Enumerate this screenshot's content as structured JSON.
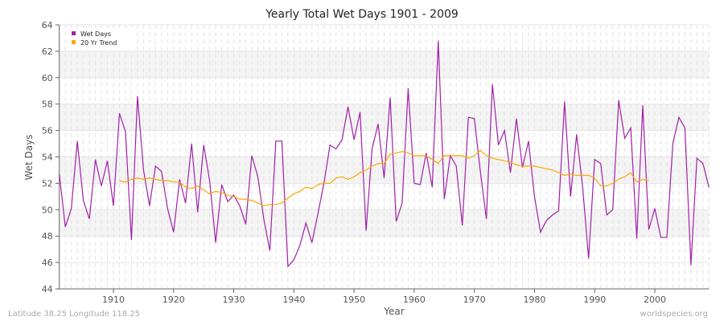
{
  "chart_data": {
    "type": "line",
    "title": "Yearly Total Wet Days 1901 - 2009",
    "xlabel": "Year",
    "ylabel": "Wet Days",
    "xlim": [
      1901,
      2009
    ],
    "ylim": [
      44,
      64
    ],
    "xticks": [
      1910,
      1920,
      1930,
      1940,
      1950,
      1960,
      1970,
      1980,
      1990,
      2000
    ],
    "yticks": [
      44,
      46,
      48,
      50,
      52,
      54,
      56,
      58,
      60,
      62,
      64
    ],
    "grid": true,
    "legend_placement": "top-left",
    "series": [
      {
        "name": "Wet Days",
        "color": "#a020a8",
        "x_start": 1901,
        "values": [
          52.7,
          48.7,
          50.1,
          55.2,
          50.7,
          49.3,
          53.8,
          51.8,
          53.7,
          50.3,
          57.3,
          55.9,
          47.7,
          58.6,
          53.0,
          50.3,
          53.3,
          52.9,
          50.1,
          48.3,
          52.3,
          50.5,
          55.0,
          49.8,
          54.9,
          52.2,
          47.5,
          51.9,
          50.6,
          51.1,
          50.3,
          48.9,
          54.1,
          52.5,
          49.3,
          46.9,
          55.2,
          55.2,
          45.7,
          46.2,
          47.3,
          49.0,
          47.5,
          49.7,
          52.0,
          54.9,
          54.6,
          55.3,
          57.8,
          55.3,
          57.4,
          48.4,
          54.6,
          56.5,
          52.4,
          58.5,
          49.1,
          50.5,
          59.2,
          52.0,
          51.9,
          54.3,
          51.7,
          62.8,
          50.8,
          54.1,
          53.3,
          48.8,
          57.0,
          56.9,
          52.9,
          49.3,
          59.5,
          54.9,
          56.0,
          52.8,
          56.9,
          53.2,
          55.2,
          51.0,
          48.3,
          49.2,
          49.6,
          49.9,
          58.2,
          51.0,
          55.7,
          51.7,
          46.3,
          53.8,
          53.5,
          49.6,
          50.0,
          58.3,
          55.4,
          56.2,
          47.8,
          57.9,
          48.5,
          50.1,
          47.9,
          47.9,
          55.0,
          57.0,
          56.2,
          45.8,
          53.9,
          53.5,
          51.7
        ]
      },
      {
        "name": "20 Yr Trend",
        "color": "#ffa500",
        "x_start": 1911,
        "values": [
          52.2,
          52.1,
          52.3,
          52.4,
          52.3,
          52.4,
          52.3,
          52.2,
          52.2,
          52.1,
          52.1,
          51.7,
          51.6,
          51.8,
          51.5,
          51.2,
          51.4,
          51.3,
          51.1,
          51.0,
          50.8,
          50.8,
          50.7,
          50.5,
          50.3,
          50.4,
          50.4,
          50.5,
          50.9,
          51.2,
          51.4,
          51.7,
          51.6,
          51.9,
          52.0,
          52.0,
          52.4,
          52.5,
          52.3,
          52.5,
          52.8,
          53.0,
          53.3,
          53.5,
          53.5,
          54.2,
          54.3,
          54.4,
          54.3,
          54.1,
          54.1,
          54.1,
          53.8,
          53.5,
          54.1,
          54.1,
          54.1,
          54.1,
          53.9,
          54.1,
          54.5,
          54.1,
          53.9,
          53.8,
          53.7,
          53.6,
          53.4,
          53.3,
          53.3,
          53.3,
          53.2,
          53.1,
          53.0,
          52.8,
          52.6,
          52.7,
          52.6,
          52.6,
          52.6,
          52.4,
          51.8,
          51.8,
          52.0,
          52.3,
          52.5,
          52.8,
          52.1,
          52.3,
          52.2
        ]
      }
    ]
  },
  "footer": {
    "left": "Latitude 38.25 Longitude 118.25",
    "right": "worldspecies.org"
  }
}
